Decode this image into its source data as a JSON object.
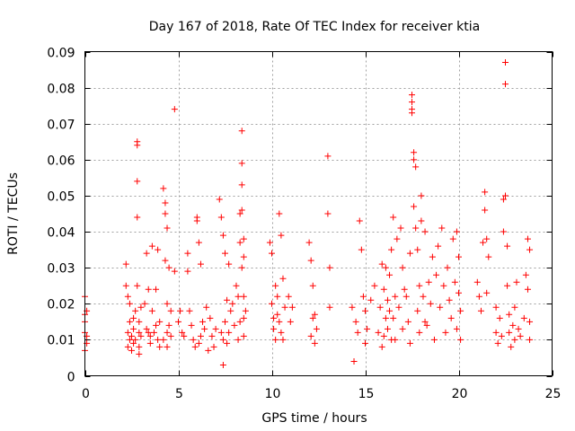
{
  "chart_data": {
    "type": "scatter",
    "title": "Day 167 of 2018, Rate Of TEC Index for receiver ktia",
    "xlabel": "GPS time / hours",
    "ylabel": "ROTI / TECUs",
    "xlim": [
      0,
      25
    ],
    "ylim": [
      0,
      0.09
    ],
    "xticks": [
      0,
      5,
      10,
      15,
      20,
      25
    ],
    "xtick_labels": [
      "0",
      "5",
      "10",
      "15",
      "20",
      "25"
    ],
    "yticks": [
      0,
      0.01,
      0.02,
      0.03,
      0.04,
      0.05,
      0.06,
      0.07,
      0.08,
      0.09
    ],
    "ytick_labels": [
      "0",
      "0.01",
      "0.02",
      "0.03",
      "0.04",
      "0.05",
      "0.06",
      "0.07",
      "0.08",
      "0.09"
    ],
    "grid": true,
    "marker": "plus",
    "color": "#ff0000",
    "series": [
      {
        "name": "ROTI",
        "x": [
          0.0,
          0.0,
          0.0,
          0.0,
          0.0,
          0.1,
          0.1,
          0.1,
          2.2,
          2.2,
          2.3,
          2.3,
          2.3,
          2.4,
          2.4,
          2.4,
          2.5,
          2.5,
          2.6,
          2.6,
          2.6,
          2.7,
          2.7,
          2.8,
          2.8,
          2.8,
          2.8,
          2.8,
          2.9,
          2.9,
          2.9,
          2.9,
          3.0,
          3.0,
          3.2,
          3.3,
          3.3,
          3.4,
          3.4,
          3.5,
          3.5,
          3.6,
          3.6,
          3.7,
          3.8,
          3.8,
          3.9,
          3.9,
          4.0,
          4.0,
          4.2,
          4.2,
          4.3,
          4.3,
          4.3,
          4.4,
          4.4,
          4.4,
          4.4,
          4.5,
          4.5,
          4.6,
          4.6,
          4.8,
          4.8,
          5.0,
          5.1,
          5.2,
          5.3,
          5.5,
          5.5,
          5.6,
          5.7,
          5.8,
          5.9,
          6.0,
          6.0,
          6.1,
          6.1,
          6.2,
          6.2,
          6.3,
          6.4,
          6.5,
          6.6,
          6.7,
          6.8,
          6.9,
          7.0,
          7.2,
          7.3,
          7.3,
          7.4,
          7.4,
          7.4,
          7.5,
          7.5,
          7.6,
          7.6,
          7.7,
          7.7,
          7.8,
          7.9,
          8.0,
          8.1,
          8.2,
          8.2,
          8.3,
          8.3,
          8.3,
          8.4,
          8.4,
          8.4,
          8.4,
          8.4,
          8.5,
          8.5,
          8.5,
          8.5,
          8.5,
          8.6,
          9.9,
          10.0,
          10.0,
          10.1,
          10.1,
          10.2,
          10.2,
          10.3,
          10.3,
          10.4,
          10.4,
          10.5,
          10.5,
          10.6,
          10.6,
          10.7,
          10.9,
          11.0,
          11.1,
          12.0,
          12.1,
          12.1,
          12.2,
          12.2,
          12.3,
          12.3,
          12.4,
          13.0,
          13.0,
          13.1,
          13.1,
          14.3,
          14.4,
          14.5,
          14.6,
          14.7,
          14.8,
          14.9,
          15.0,
          15.0,
          15.1,
          15.3,
          15.5,
          15.7,
          15.8,
          15.9,
          15.9,
          16.0,
          16.0,
          16.1,
          16.1,
          16.2,
          16.2,
          16.3,
          16.3,
          16.4,
          16.4,
          16.5,
          16.5,
          16.6,
          16.6,
          16.7,
          16.8,
          16.9,
          17.0,
          17.0,
          17.1,
          17.2,
          17.3,
          17.4,
          17.4,
          17.5,
          17.5,
          17.5,
          17.5,
          17.6,
          17.6,
          17.6,
          17.7,
          17.7,
          17.8,
          17.8,
          17.9,
          17.9,
          18.0,
          18.0,
          18.1,
          18.2,
          18.2,
          18.3,
          18.4,
          18.5,
          18.6,
          18.7,
          18.8,
          18.9,
          19.0,
          19.1,
          19.2,
          19.3,
          19.4,
          19.5,
          19.6,
          19.7,
          19.8,
          19.9,
          19.9,
          20.0,
          20.0,
          20.1,
          20.1,
          21.0,
          21.1,
          21.2,
          21.3,
          21.4,
          21.4,
          21.5,
          21.5,
          21.6,
          22.0,
          22.0,
          22.1,
          22.2,
          22.3,
          22.4,
          22.4,
          22.5,
          22.5,
          22.5,
          22.6,
          22.6,
          22.7,
          22.7,
          22.8,
          22.9,
          23.0,
          23.0,
          23.1,
          23.2,
          23.3,
          23.5,
          23.6,
          23.7,
          23.7,
          23.8,
          23.8,
          23.8
        ],
        "y": [
          0.022,
          0.017,
          0.015,
          0.012,
          0.007,
          0.018,
          0.011,
          0.009,
          0.031,
          0.025,
          0.012,
          0.022,
          0.008,
          0.02,
          0.01,
          0.015,
          0.011,
          0.007,
          0.016,
          0.009,
          0.013,
          0.01,
          0.018,
          0.065,
          0.064,
          0.054,
          0.044,
          0.025,
          0.012,
          0.006,
          0.008,
          0.015,
          0.011,
          0.019,
          0.02,
          0.034,
          0.013,
          0.012,
          0.024,
          0.011,
          0.009,
          0.036,
          0.018,
          0.012,
          0.014,
          0.024,
          0.01,
          0.035,
          0.015,
          0.008,
          0.01,
          0.052,
          0.048,
          0.045,
          0.032,
          0.02,
          0.012,
          0.008,
          0.041,
          0.014,
          0.03,
          0.018,
          0.011,
          0.074,
          0.029,
          0.015,
          0.018,
          0.012,
          0.011,
          0.029,
          0.034,
          0.018,
          0.014,
          0.01,
          0.008,
          0.044,
          0.043,
          0.037,
          0.009,
          0.031,
          0.011,
          0.015,
          0.013,
          0.019,
          0.007,
          0.016,
          0.011,
          0.008,
          0.013,
          0.049,
          0.044,
          0.012,
          0.039,
          0.01,
          0.003,
          0.034,
          0.015,
          0.021,
          0.009,
          0.031,
          0.012,
          0.018,
          0.02,
          0.014,
          0.025,
          0.01,
          0.022,
          0.037,
          0.015,
          0.045,
          0.068,
          0.059,
          0.053,
          0.046,
          0.03,
          0.033,
          0.022,
          0.016,
          0.038,
          0.011,
          0.018,
          0.037,
          0.034,
          0.02,
          0.013,
          0.016,
          0.025,
          0.01,
          0.017,
          0.022,
          0.045,
          0.015,
          0.039,
          0.012,
          0.027,
          0.01,
          0.019,
          0.022,
          0.015,
          0.019,
          0.037,
          0.032,
          0.011,
          0.025,
          0.016,
          0.017,
          0.009,
          0.013,
          0.061,
          0.045,
          0.03,
          0.019,
          0.019,
          0.004,
          0.015,
          0.012,
          0.043,
          0.035,
          0.022,
          0.018,
          0.009,
          0.013,
          0.021,
          0.025,
          0.012,
          0.019,
          0.008,
          0.031,
          0.024,
          0.011,
          0.016,
          0.03,
          0.013,
          0.021,
          0.018,
          0.028,
          0.035,
          0.01,
          0.044,
          0.016,
          0.022,
          0.01,
          0.038,
          0.019,
          0.041,
          0.013,
          0.03,
          0.024,
          0.022,
          0.015,
          0.034,
          0.009,
          0.078,
          0.076,
          0.074,
          0.073,
          0.062,
          0.06,
          0.047,
          0.058,
          0.041,
          0.018,
          0.035,
          0.025,
          0.012,
          0.05,
          0.043,
          0.022,
          0.015,
          0.04,
          0.014,
          0.026,
          0.02,
          0.033,
          0.01,
          0.028,
          0.036,
          0.019,
          0.041,
          0.025,
          0.012,
          0.03,
          0.021,
          0.016,
          0.038,
          0.026,
          0.013,
          0.04,
          0.023,
          0.033,
          0.018,
          0.01,
          0.026,
          0.022,
          0.018,
          0.037,
          0.046,
          0.051,
          0.038,
          0.023,
          0.033,
          0.012,
          0.019,
          0.009,
          0.016,
          0.011,
          0.049,
          0.04,
          0.087,
          0.081,
          0.05,
          0.036,
          0.025,
          0.012,
          0.017,
          0.008,
          0.014,
          0.01,
          0.019,
          0.026,
          0.013,
          0.011,
          0.016,
          0.028,
          0.038,
          0.024,
          0.035,
          0.015,
          0.01
        ]
      }
    ]
  }
}
